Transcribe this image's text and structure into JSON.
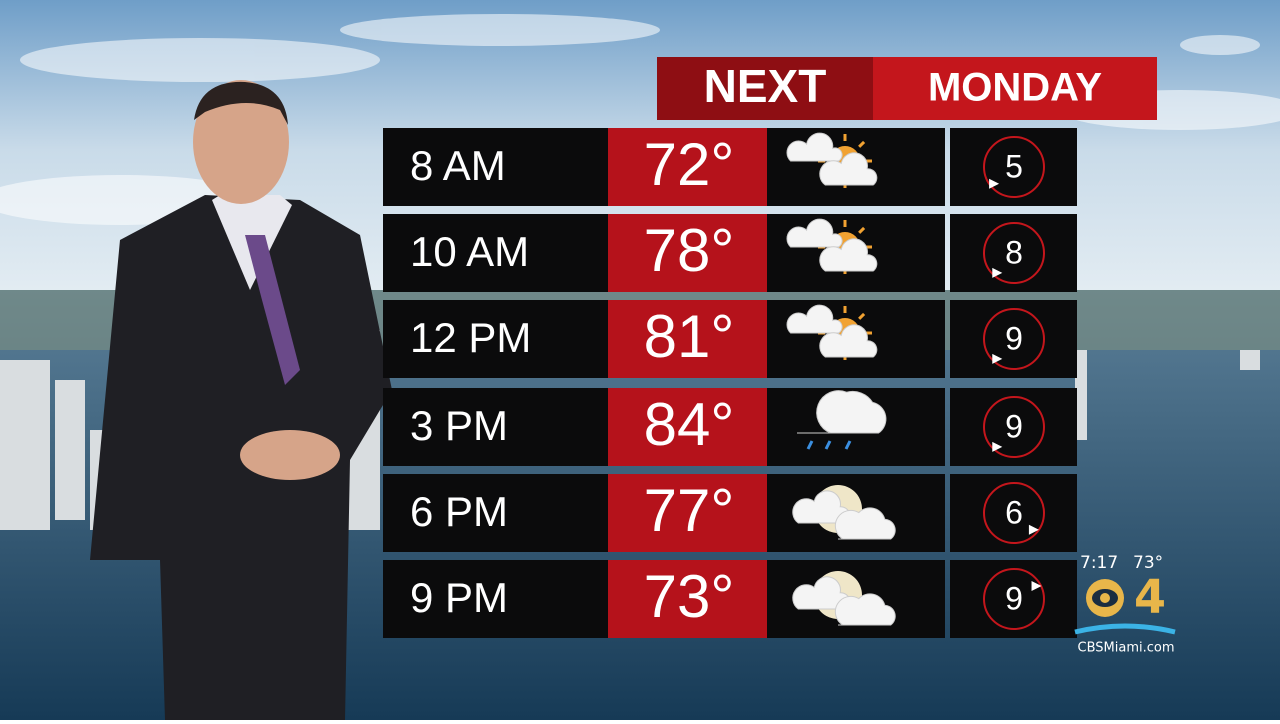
{
  "header": {
    "brand": "NEXT",
    "day": "MONDAY"
  },
  "rows": [
    {
      "time": "8 AM",
      "temp": "72°",
      "uv": "5"
    },
    {
      "time": "10 AM",
      "temp": "78°",
      "uv": "8"
    },
    {
      "time": "12 PM",
      "temp": "81°",
      "uv": "9"
    },
    {
      "time": "3 PM",
      "temp": "84°",
      "uv": "9"
    },
    {
      "time": "6 PM",
      "temp": "77°",
      "uv": "6"
    },
    {
      "time": "9 PM",
      "temp": "73°",
      "uv": "9"
    }
  ],
  "bug": {
    "time": "7:17",
    "temp": "73°",
    "channel": "4",
    "site": "CBSMiami.com"
  }
}
